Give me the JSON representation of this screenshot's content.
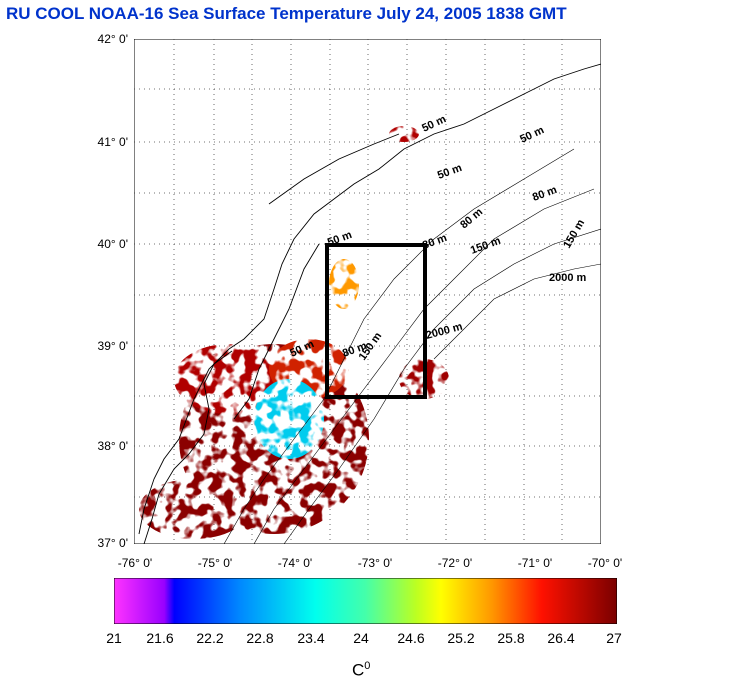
{
  "title": "RU COOL  NOAA-16 Sea Surface Temperature July 24, 2005 1838 GMT",
  "lat_labels": [
    "42° 0'",
    "41° 0'",
    "40° 0'",
    "39° 0'",
    "38° 0'",
    "37° 0'"
  ],
  "lon_labels": [
    "-76° 0'",
    "-75° 0'",
    "-74° 0'",
    "-73° 0'",
    "-72° 0'",
    "-71° 0'",
    "-70° 0'"
  ],
  "isobaths": [
    "50 m",
    "50 m",
    "80 m",
    "80 m",
    "150 m",
    "150 m",
    "2000 m",
    "2000 m",
    "50 m",
    "80 m",
    "150 m",
    "50 m",
    "80 m",
    "50 m"
  ],
  "colorbar": {
    "ticks": [
      "21",
      "21.6",
      "22.2",
      "22.8",
      "23.4",
      "24",
      "24.6",
      "25.2",
      "25.8",
      "26.4",
      "27"
    ],
    "unit": "C",
    "unit_sup": "0"
  },
  "colors": {
    "title": "#0033cc",
    "box": "#000000"
  }
}
